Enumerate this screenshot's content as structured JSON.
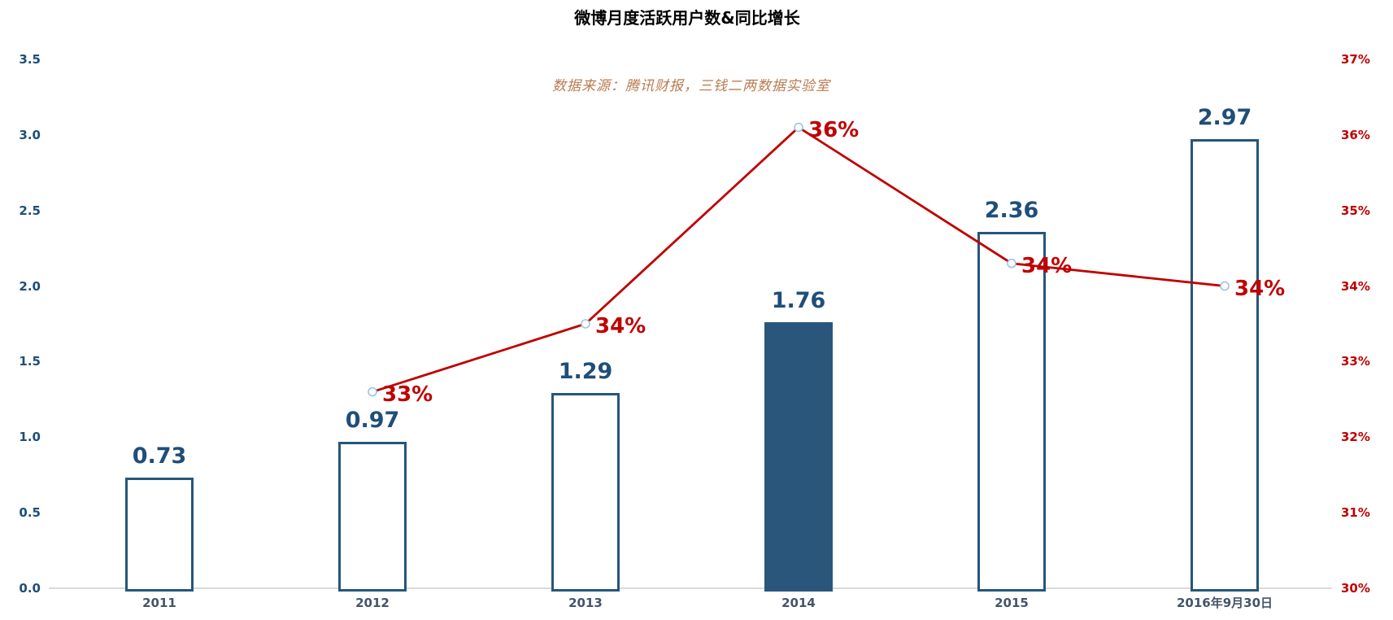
{
  "chart_data": {
    "type": "bar",
    "combo": "bar+line",
    "title": "微博月度活跃用户数&同比增长",
    "subtitle": "数据来源：腾讯财报，三钱二两数据实验室",
    "categories": [
      "2011",
      "2012",
      "2013",
      "2014",
      "2015",
      "2016年9月30日"
    ],
    "series": [
      {
        "name": "月度活跃用户数",
        "type": "bar",
        "values": [
          0.73,
          0.97,
          1.29,
          1.76,
          2.36,
          2.97
        ],
        "value_labels": [
          "0.73",
          "0.97",
          "1.29",
          "1.76",
          "2.36",
          "2.97"
        ],
        "highlight_index": 3
      },
      {
        "name": "同比增长",
        "type": "line",
        "start_category_index": 1,
        "labels": [
          "33%",
          "34%",
          "36%",
          "34%",
          "34%"
        ],
        "plotted_pct": [
          32.6,
          33.5,
          36.1,
          34.3,
          34.0
        ]
      }
    ],
    "left_axis": {
      "min": 0.0,
      "max": 3.5,
      "step": 0.5,
      "ticks": [
        "3.5",
        "3.0",
        "2.5",
        "2.0",
        "1.5",
        "1.0",
        "0.5",
        "0.0"
      ]
    },
    "right_axis": {
      "min": 30,
      "max": 37,
      "step": 1,
      "ticks": [
        "37%",
        "36%",
        "35%",
        "34%",
        "33%",
        "32%",
        "31%",
        "30%"
      ]
    },
    "legend": "none",
    "grid": "off",
    "colors": {
      "title": "#000000",
      "subtitle": "#B97B51",
      "bar_outline": "#25567B",
      "bar_fill_highlight": "#2A567C",
      "bar_value_label": "#1F4E79",
      "left_axis_label": "#1F4E79",
      "right_axis_label": "#C00000",
      "x_axis_label": "#44546A",
      "line": "#C00000",
      "pct_label": "#C00000",
      "marker_stroke": "#9DC3E6",
      "marker_fill": "#FFFFFF",
      "axis_line": "#D9D9D9",
      "background": "#FFFFFF"
    }
  }
}
